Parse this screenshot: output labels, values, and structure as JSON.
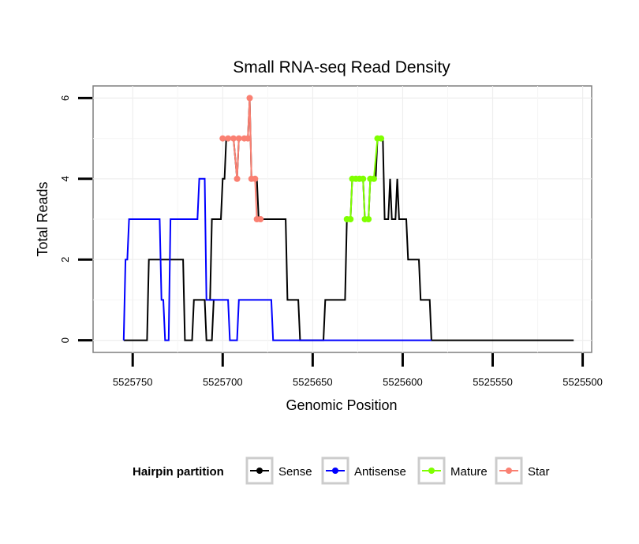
{
  "chart_data": {
    "type": "line",
    "title": "Small RNA-seq Read Density",
    "xlabel": "Genomic Position",
    "ylabel": "Total Reads",
    "x_reversed": true,
    "xlim": [
      5525772,
      5525495
    ],
    "ylim": [
      -0.3,
      6.3
    ],
    "x_ticks": [
      5525750,
      5525700,
      5525650,
      5525600,
      5525550,
      5525500
    ],
    "x_tick_labels": [
      "5525750",
      "5525700",
      "5525650",
      "5525600",
      "5525550",
      "5525500"
    ],
    "y_ticks": [
      0,
      2,
      4,
      6
    ],
    "y_tick_labels": [
      "0",
      "2",
      "4",
      "6"
    ],
    "grid": true,
    "legend": {
      "position": "bottom",
      "title": "Hairpin partition",
      "items": [
        {
          "label": "Sense",
          "color": "#000000"
        },
        {
          "label": "Antisense",
          "color": "#0000ff"
        },
        {
          "label": "Mature",
          "color": "#7fff00"
        },
        {
          "label": "Star",
          "color": "#fa8072"
        }
      ]
    },
    "series": [
      {
        "name": "Sense",
        "color": "#000000",
        "points": [
          [
            5525755,
            0
          ],
          [
            5525742,
            0
          ],
          [
            5525741,
            2
          ],
          [
            5525722,
            2
          ],
          [
            5525721,
            0
          ],
          [
            5525717,
            0
          ],
          [
            5525716,
            1
          ],
          [
            5525710,
            1
          ],
          [
            5525709,
            0
          ],
          [
            5525706,
            0
          ],
          [
            5525705,
            1
          ],
          [
            5525707,
            1
          ],
          [
            5525706,
            3
          ],
          [
            5525701,
            3
          ],
          [
            5525700,
            4
          ],
          [
            5525699,
            4
          ],
          [
            5525698,
            5
          ],
          [
            5525694,
            5
          ],
          [
            5525692,
            4
          ],
          [
            5525691,
            5
          ],
          [
            5525686,
            5
          ],
          [
            5525685,
            6
          ],
          [
            5525684,
            4
          ],
          [
            5525681,
            4
          ],
          [
            5525680,
            3
          ],
          [
            5525665,
            3
          ],
          [
            5525664,
            1
          ],
          [
            5525658,
            1
          ],
          [
            5525657,
            0
          ],
          [
            5525644,
            0
          ],
          [
            5525643,
            1
          ],
          [
            5525632,
            1
          ],
          [
            5525631,
            3
          ],
          [
            5525629,
            3
          ],
          [
            5525628,
            4
          ],
          [
            5525622,
            4
          ],
          [
            5525621,
            3
          ],
          [
            5525619,
            3
          ],
          [
            5525618,
            4
          ],
          [
            5525615,
            4
          ],
          [
            5525614,
            5
          ],
          [
            5525611,
            5
          ],
          [
            5525610,
            3
          ],
          [
            5525608,
            3
          ],
          [
            5525607,
            4
          ],
          [
            5525606,
            3
          ],
          [
            5525604,
            3
          ],
          [
            5525603,
            4
          ],
          [
            5525602,
            3
          ],
          [
            5525598,
            3
          ],
          [
            5525597,
            2
          ],
          [
            5525591,
            2
          ],
          [
            5525590,
            1
          ],
          [
            5525585,
            1
          ],
          [
            5525584,
            0
          ],
          [
            5525505,
            0
          ]
        ]
      },
      {
        "name": "Antisense",
        "color": "#0000ff",
        "points": [
          [
            5525755,
            0
          ],
          [
            5525754,
            2
          ],
          [
            5525753,
            2
          ],
          [
            5525752,
            3
          ],
          [
            5525735,
            3
          ],
          [
            5525734,
            1
          ],
          [
            5525733,
            1
          ],
          [
            5525732,
            0
          ],
          [
            5525730,
            0
          ],
          [
            5525729,
            3
          ],
          [
            5525714,
            3
          ],
          [
            5525713,
            4
          ],
          [
            5525710,
            4
          ],
          [
            5525709,
            1
          ],
          [
            5525697,
            1
          ],
          [
            5525696,
            0
          ],
          [
            5525692,
            0
          ],
          [
            5525691,
            1
          ],
          [
            5525673,
            1
          ],
          [
            5525672,
            0
          ],
          [
            5525584,
            0
          ]
        ]
      },
      {
        "name": "Mature",
        "color": "#7fff00",
        "points": [
          [
            5525631,
            3
          ],
          [
            5525629,
            3
          ],
          [
            5525628,
            4
          ],
          [
            5525626,
            4
          ],
          [
            5525624,
            4
          ],
          [
            5525622,
            4
          ],
          [
            5525621,
            3
          ],
          [
            5525619,
            3
          ],
          [
            5525618,
            4
          ],
          [
            5525616,
            4
          ],
          [
            5525614,
            5
          ],
          [
            5525612,
            5
          ]
        ]
      },
      {
        "name": "Star",
        "color": "#fa8072",
        "points": [
          [
            5525700,
            5
          ],
          [
            5525697,
            5
          ],
          [
            5525694,
            5
          ],
          [
            5525692,
            4
          ],
          [
            5525691,
            5
          ],
          [
            5525688,
            5
          ],
          [
            5525686,
            5
          ],
          [
            5525685,
            6
          ],
          [
            5525684,
            4
          ],
          [
            5525682,
            4
          ],
          [
            5525681,
            3
          ],
          [
            5525679,
            3
          ]
        ]
      }
    ]
  }
}
